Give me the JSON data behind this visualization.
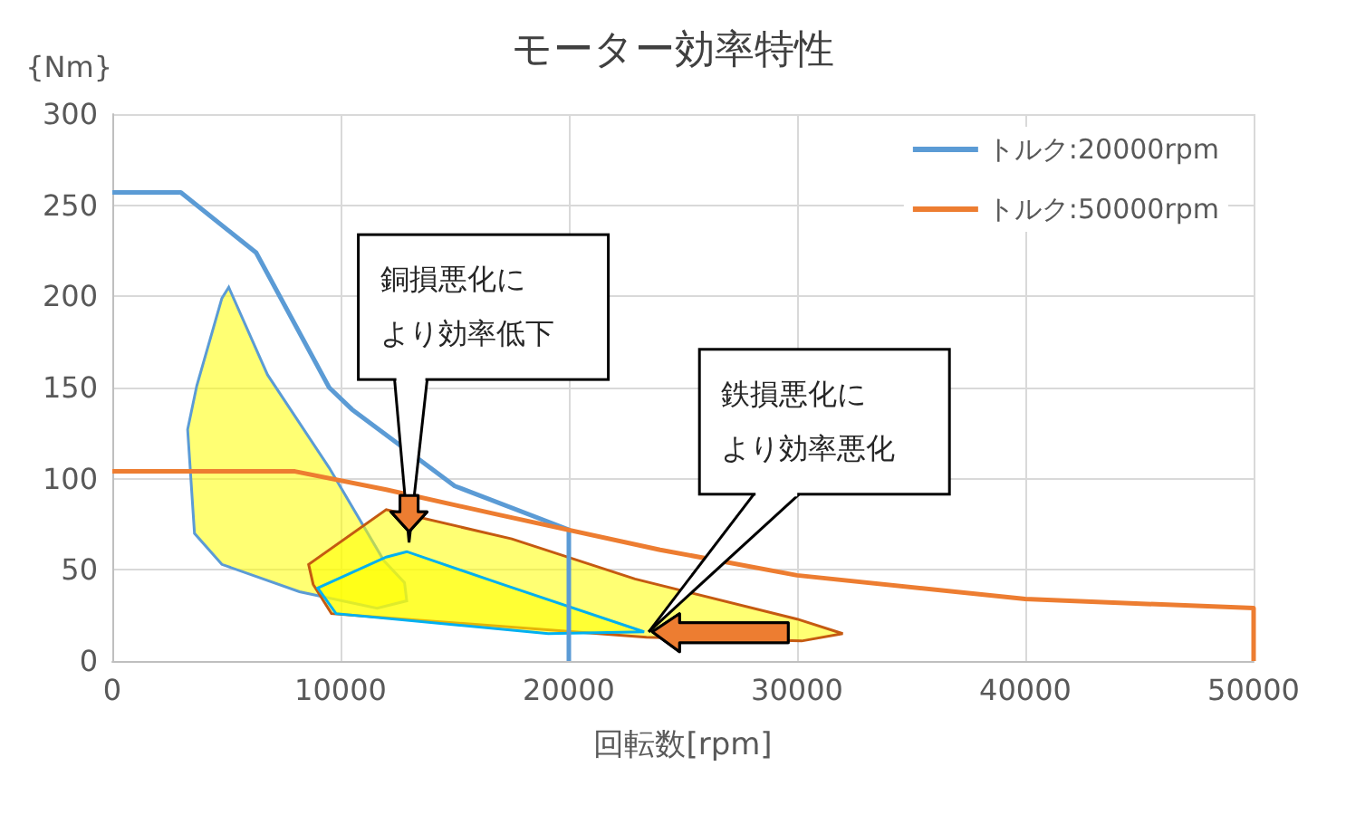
{
  "chart_data": {
    "type": "line",
    "title": "モーター効率特性",
    "ylabel": "{Nm}",
    "xlabel": "回転数[rpm]",
    "xlim": [
      0,
      50000
    ],
    "xticks": [
      0,
      10000,
      20000,
      30000,
      40000,
      50000
    ],
    "ylim": [
      0,
      300
    ],
    "yticks": [
      0,
      50,
      100,
      150,
      200,
      250,
      300
    ],
    "grid": true,
    "legend": "top right",
    "marker": "none",
    "line_style": "solid",
    "series": [
      {
        "name": "トルク:20000rpm",
        "color": "#5b9bd5",
        "x": [
          0,
          3000,
          6300,
          9500,
          10500,
          15000,
          20000,
          20000
        ],
        "values": [
          257,
          257,
          224,
          150,
          138,
          96,
          72,
          0
        ]
      },
      {
        "name": "トルク:50000rpm",
        "color": "#ed7d31",
        "x": [
          0,
          8000,
          12000,
          17000,
          24000,
          30000,
          40000,
          50000,
          50000
        ],
        "values": [
          104,
          104,
          94,
          80,
          61,
          47,
          34,
          29,
          0
        ]
      },
      {
        "type": "area",
        "color": "#5b9bd5",
        "x": [
          5100,
          4800,
          3700,
          3300,
          3600,
          4800,
          8200,
          11600,
          12900,
          12800,
          11900,
          9500,
          6800
        ],
        "values": [
          205,
          199,
          151,
          127,
          70,
          53,
          38,
          29,
          33,
          43,
          55,
          106,
          157
        ]
      },
      {
        "type": "area",
        "color": "#c55a11",
        "x": [
          8600,
          8800,
          9600,
          23400,
          30200,
          32000,
          30000,
          22900,
          17500,
          12000
        ],
        "values": [
          53,
          42,
          26,
          13,
          11,
          15,
          23,
          45,
          67,
          83
        ]
      },
      {
        "type": "area",
        "color": "#00b0f0",
        "x": [
          9000,
          12000,
          12900,
          17100,
          23300,
          19100,
          9800
        ],
        "values": [
          40,
          57,
          60,
          42,
          16,
          15,
          26
        ]
      }
    ],
    "annotations": [
      {
        "text": "銅損悪化により効率低下",
        "x": 13000,
        "y": 65
      },
      {
        "text": "鉄損悪化により効率悪化",
        "x": 23500,
        "y": 16
      }
    ]
  }
}
